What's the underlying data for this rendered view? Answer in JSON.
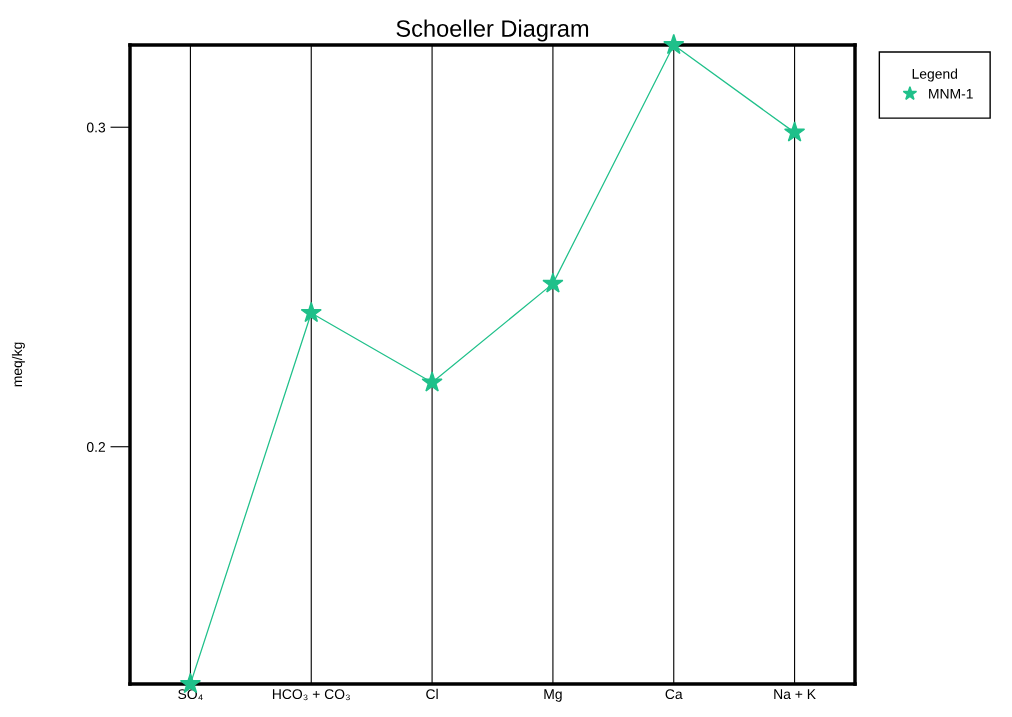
{
  "chart_data": {
    "type": "line",
    "title": "Schoeller Diagram",
    "ylabel": "meq/kg",
    "categories": [
      "SO₄",
      "HCO₃ + CO₃",
      "Cl",
      "Mg",
      "Ca",
      "Na + K"
    ],
    "series": [
      {
        "name": "MNM-1",
        "color": "#1fc08a",
        "values": [
          0.148,
          0.237,
          0.217,
          0.246,
          0.333,
          0.298
        ]
      }
    ],
    "log": "y",
    "ylim": [
      0.148,
      0.333
    ],
    "yticks": [
      0.2,
      0.3
    ],
    "grid": "x",
    "legend": "top right",
    "legend_title": "Legend",
    "marker": "star",
    "line_style": "solid"
  }
}
